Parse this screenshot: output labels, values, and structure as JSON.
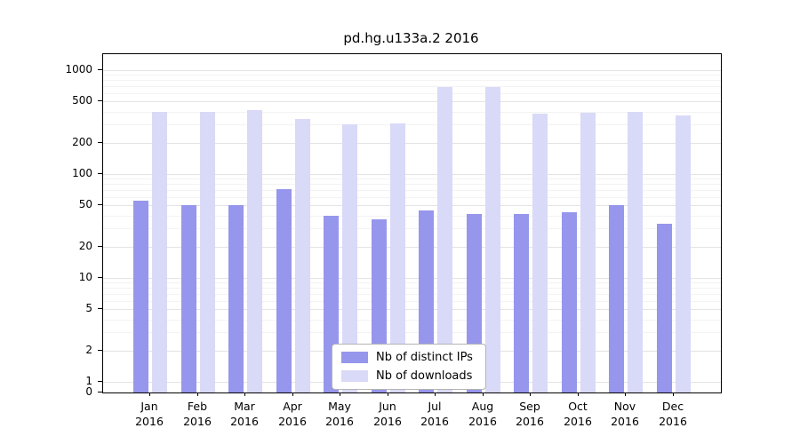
{
  "chart_data": {
    "type": "bar",
    "title": "pd.hg.u133a.2 2016",
    "categories": [
      "Jan",
      "Feb",
      "Mar",
      "Apr",
      "May",
      "Jun",
      "Jul",
      "Aug",
      "Sep",
      "Oct",
      "Nov",
      "Dec"
    ],
    "x_year": "2016",
    "series": [
      {
        "name": "Nb of distinct IPs",
        "color": "#9696ec",
        "values": [
          55,
          50,
          50,
          72,
          40,
          37,
          45,
          41,
          41,
          43,
          50,
          33
        ]
      },
      {
        "name": "Nb of downloads",
        "color": "#d9d9f8",
        "values": [
          400,
          400,
          410,
          340,
          300,
          310,
          690,
          690,
          380,
          390,
          400,
          370
        ]
      }
    ],
    "yscale": "log",
    "yticks": [
      0,
      1,
      2,
      5,
      10,
      20,
      50,
      100,
      200,
      500,
      1000
    ],
    "ylim": [
      0,
      1000
    ],
    "grid": true,
    "legend_position": "inside-bottom-center",
    "colors": {
      "axis": "#000000",
      "grid_major": "#e4e4e4",
      "grid_minor": "#f3f3f3",
      "background": "#ffffff"
    }
  }
}
